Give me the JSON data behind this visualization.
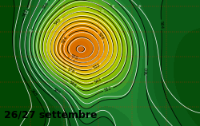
{
  "figsize": [
    2.5,
    1.58
  ],
  "dpi": 100,
  "text_date": "26/27 settembre",
  "text_fontsize": 9,
  "text_color": "#000000",
  "colors_list": [
    [
      0.0,
      "#b84400"
    ],
    [
      0.15,
      "#cc5500"
    ],
    [
      0.28,
      "#dd7700"
    ],
    [
      0.4,
      "#ee9900"
    ],
    [
      0.5,
      "#ddbb00"
    ],
    [
      0.58,
      "#bbcc00"
    ],
    [
      0.65,
      "#88bb00"
    ],
    [
      0.72,
      "#55aa22"
    ],
    [
      0.8,
      "#228833"
    ],
    [
      0.88,
      "#116622"
    ],
    [
      1.0,
      "#004400"
    ]
  ],
  "zmin": 500,
  "zmax": 570
}
